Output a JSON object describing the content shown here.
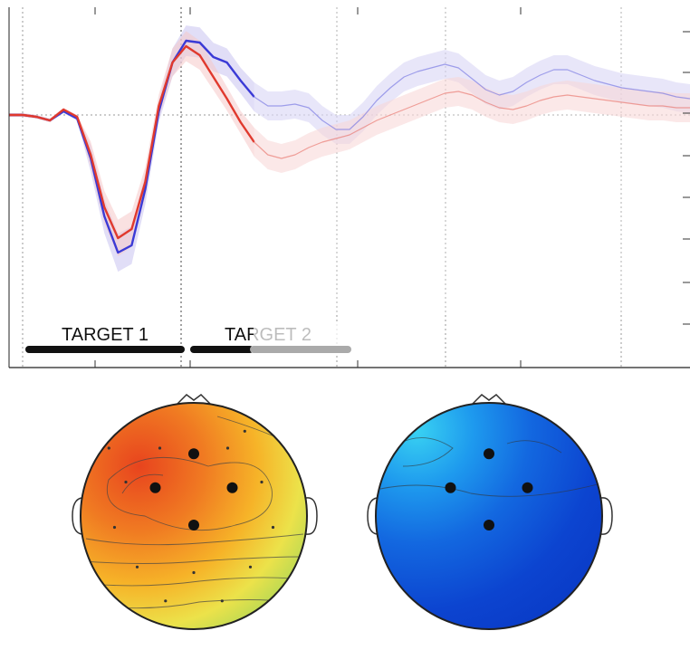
{
  "chart_data": [
    {
      "type": "line",
      "title": "",
      "xlabel": "",
      "ylabel": "",
      "x_tick_labels": [],
      "y_tick_labels": [],
      "grid": "vertical dotted",
      "legend": "none",
      "x_domain": [
        0,
        100
      ],
      "y_domain": [
        -10,
        10
      ],
      "series": [
        {
          "color": "#3a3ad6",
          "band_color": "#c9c3f0",
          "x": [
            0,
            2,
            4,
            6,
            8,
            10,
            12,
            14,
            16,
            18,
            20,
            22,
            24,
            26,
            28,
            30,
            32,
            34,
            36,
            38,
            40,
            42,
            44,
            46,
            48,
            50,
            52,
            54,
            56,
            58,
            60,
            62,
            64,
            66,
            68,
            70,
            72,
            74,
            76,
            78,
            80,
            82,
            84,
            86,
            88,
            90,
            92,
            94,
            96,
            98,
            100
          ],
          "values": [
            0,
            0,
            -0.1,
            -0.3,
            0.2,
            -0.2,
            -2.4,
            -5.6,
            -7.6,
            -7.2,
            -4.1,
            0.2,
            2.9,
            4.1,
            4.0,
            3.2,
            2.9,
            1.9,
            1.0,
            0.5,
            0.5,
            0.6,
            0.4,
            -0.3,
            -0.8,
            -0.8,
            -0.1,
            0.8,
            1.5,
            2.1,
            2.4,
            2.6,
            2.8,
            2.6,
            2.0,
            1.4,
            1.1,
            1.3,
            1.8,
            2.2,
            2.5,
            2.5,
            2.2,
            1.9,
            1.7,
            1.5,
            1.4,
            1.3,
            1.2,
            1.0,
            0.9
          ]
        },
        {
          "color": "#e0392d",
          "band_color": "#f5c9c9",
          "x": [
            0,
            2,
            4,
            6,
            8,
            10,
            12,
            14,
            16,
            18,
            20,
            22,
            24,
            26,
            28,
            30,
            32,
            34,
            36,
            38,
            40,
            42,
            44,
            46,
            48,
            50,
            52,
            54,
            56,
            58,
            60,
            62,
            64,
            66,
            68,
            70,
            72,
            74,
            76,
            78,
            80,
            82,
            84,
            86,
            88,
            90,
            92,
            94,
            96,
            98,
            100
          ],
          "values": [
            0,
            0,
            -0.1,
            -0.3,
            0.3,
            -0.1,
            -2.2,
            -5.1,
            -6.8,
            -6.3,
            -3.7,
            0.5,
            2.9,
            3.8,
            3.3,
            2.1,
            0.9,
            -0.4,
            -1.5,
            -2.2,
            -2.4,
            -2.2,
            -1.8,
            -1.5,
            -1.3,
            -1.1,
            -0.7,
            -0.3,
            0.0,
            0.3,
            0.6,
            0.9,
            1.2,
            1.3,
            1.1,
            0.7,
            0.4,
            0.3,
            0.5,
            0.8,
            1.0,
            1.1,
            1.0,
            0.9,
            0.8,
            0.7,
            0.6,
            0.5,
            0.5,
            0.4,
            0.4
          ]
        }
      ],
      "annotations": [
        {
          "label": "TARGET 1",
          "start": 1,
          "end": 26
        },
        {
          "label": "TARGET 2",
          "start": 26,
          "end": 52
        }
      ]
    },
    {
      "type": "heatmap",
      "panels": [
        {
          "palette": "warm",
          "electrodes": [
            {
              "x": 0.0,
              "y": 0.55
            },
            {
              "x": -0.34,
              "y": 0.25
            },
            {
              "x": 0.34,
              "y": 0.25
            },
            {
              "x": 0.0,
              "y": -0.08
            }
          ]
        },
        {
          "palette": "cool",
          "electrodes": [
            {
              "x": 0.0,
              "y": 0.55
            },
            {
              "x": -0.34,
              "y": 0.25
            },
            {
              "x": 0.34,
              "y": 0.25
            },
            {
              "x": 0.0,
              "y": -0.08
            }
          ]
        }
      ]
    }
  ]
}
